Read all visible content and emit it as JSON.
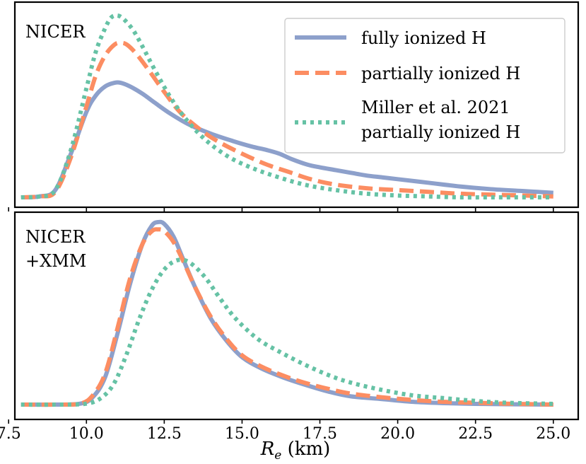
{
  "chart_data": [
    {
      "type": "line",
      "panel_label": [
        "NICER"
      ],
      "xlabel_main": "R",
      "xlabel_sub": "e",
      "xlabel_unit": " (km)",
      "xlim": [
        7.7,
        25.8
      ],
      "ylim": [
        0,
        1.05
      ],
      "y_ticks_shown": false,
      "legend": {
        "placement": "top-right",
        "entries": [
          {
            "series": 0,
            "lines": [
              "fully ionized H"
            ]
          },
          {
            "series": 1,
            "lines": [
              "partially ionized H"
            ]
          },
          {
            "series": 2,
            "lines": [
              "Miller et al. 2021",
              "partially ionized H"
            ]
          }
        ]
      },
      "series": [
        {
          "name": "fully ionized H",
          "color": "#8da0cb",
          "style": "solid",
          "x": [
            7.9,
            8.5,
            9.0,
            9.5,
            10.0,
            10.3,
            10.6,
            10.9,
            11.1,
            11.4,
            11.8,
            12.2,
            12.7,
            13.3,
            14.0,
            14.7,
            15.3,
            15.8,
            16.2,
            16.6,
            17.1,
            17.5,
            18.0,
            18.5,
            19.0,
            19.5,
            20.0,
            21.0,
            22.0,
            23.0,
            24.0,
            25.0
          ],
          "values": [
            0.0,
            0.005,
            0.04,
            0.24,
            0.47,
            0.56,
            0.61,
            0.63,
            0.63,
            0.61,
            0.57,
            0.52,
            0.46,
            0.4,
            0.35,
            0.31,
            0.28,
            0.26,
            0.24,
            0.21,
            0.18,
            0.165,
            0.15,
            0.135,
            0.12,
            0.11,
            0.1,
            0.08,
            0.06,
            0.045,
            0.035,
            0.025
          ]
        },
        {
          "name": "partially ionized H",
          "color": "#fc8d62",
          "style": "dashed",
          "x": [
            7.9,
            8.5,
            9.0,
            9.5,
            10.0,
            10.3,
            10.6,
            10.9,
            11.1,
            11.3,
            11.6,
            12.0,
            12.5,
            13.0,
            13.6,
            14.2,
            15.0,
            15.8,
            16.5,
            17.2,
            18.0,
            19.0,
            20.0,
            21.0,
            22.0,
            23.0,
            24.0,
            25.0
          ],
          "values": [
            0.0,
            0.005,
            0.03,
            0.22,
            0.5,
            0.67,
            0.78,
            0.84,
            0.85,
            0.84,
            0.79,
            0.7,
            0.58,
            0.47,
            0.38,
            0.31,
            0.24,
            0.18,
            0.14,
            0.1,
            0.07,
            0.05,
            0.04,
            0.03,
            0.02,
            0.015,
            0.01,
            0.005
          ]
        },
        {
          "name": "Miller et al. 2021 partially ionized H",
          "color": "#66c2a5",
          "style": "dotted",
          "x": [
            7.9,
            8.5,
            9.0,
            9.5,
            10.0,
            10.3,
            10.6,
            10.8,
            11.0,
            11.2,
            11.5,
            11.8,
            12.2,
            12.7,
            13.2,
            13.8,
            14.5,
            15.2,
            16.0,
            17.0,
            18.0,
            19.0,
            20.0,
            21.0,
            22.0,
            23.0,
            24.0,
            25.0
          ],
          "values": [
            0.0,
            0.005,
            0.04,
            0.26,
            0.6,
            0.8,
            0.93,
            0.99,
            1.0,
            0.98,
            0.92,
            0.83,
            0.7,
            0.55,
            0.43,
            0.32,
            0.23,
            0.17,
            0.12,
            0.07,
            0.04,
            0.02,
            0.01,
            0.005,
            0.0,
            0.0,
            0.0,
            0.0
          ]
        }
      ]
    },
    {
      "type": "line",
      "panel_label": [
        "NICER",
        "+XMM"
      ],
      "xlim": [
        7.7,
        25.8
      ],
      "ylim": [
        0,
        1.05
      ],
      "y_ticks_shown": false,
      "x_ticks": [
        7.5,
        10.0,
        12.5,
        15.0,
        17.5,
        20.0,
        22.5,
        25.0
      ],
      "x_tick_labels": [
        "7.5",
        "10.0",
        "12.5",
        "15.0",
        "17.5",
        "20.0",
        "22.5",
        "25.0"
      ],
      "series": [
        {
          "name": "fully ionized H",
          "color": "#8da0cb",
          "style": "solid",
          "x": [
            7.9,
            9.0,
            9.8,
            10.2,
            10.6,
            11.0,
            11.4,
            11.8,
            12.1,
            12.3,
            12.5,
            12.8,
            13.1,
            13.5,
            14.0,
            14.5,
            15.0,
            15.6,
            16.3,
            17.0,
            17.8,
            18.5,
            19.5,
            20.5,
            21.5,
            22.5,
            23.5,
            25.0
          ],
          "values": [
            0.0,
            0.0,
            0.005,
            0.04,
            0.15,
            0.39,
            0.66,
            0.88,
            0.98,
            1.0,
            0.99,
            0.92,
            0.8,
            0.64,
            0.47,
            0.35,
            0.26,
            0.2,
            0.15,
            0.11,
            0.07,
            0.045,
            0.03,
            0.015,
            0.008,
            0.004,
            0.002,
            0.0
          ]
        },
        {
          "name": "partially ionized H",
          "color": "#fc8d62",
          "style": "dashed",
          "x": [
            7.9,
            9.0,
            9.8,
            10.2,
            10.6,
            11.0,
            11.4,
            11.8,
            12.1,
            12.3,
            12.5,
            12.8,
            13.1,
            13.5,
            14.0,
            14.5,
            15.0,
            15.6,
            16.3,
            17.0,
            17.8,
            18.5,
            19.5,
            20.5,
            21.5,
            22.5,
            23.5,
            25.0
          ],
          "values": [
            0.0,
            0.0,
            0.005,
            0.05,
            0.17,
            0.42,
            0.69,
            0.88,
            0.95,
            0.96,
            0.95,
            0.89,
            0.79,
            0.64,
            0.48,
            0.36,
            0.27,
            0.21,
            0.16,
            0.12,
            0.085,
            0.06,
            0.04,
            0.025,
            0.015,
            0.01,
            0.005,
            0.0
          ]
        },
        {
          "name": "Miller et al. 2021 partially ionized H",
          "color": "#66c2a5",
          "style": "dotted",
          "x": [
            7.9,
            9.0,
            10.0,
            10.5,
            10.9,
            11.3,
            11.7,
            12.1,
            12.5,
            12.9,
            13.3,
            13.8,
            14.3,
            14.8,
            15.5,
            16.2,
            17.0,
            17.8,
            18.5,
            19.5,
            20.5,
            21.5,
            22.5,
            23.5,
            25.0
          ],
          "values": [
            0.0,
            0.0,
            0.005,
            0.04,
            0.12,
            0.28,
            0.47,
            0.63,
            0.74,
            0.79,
            0.78,
            0.7,
            0.58,
            0.47,
            0.36,
            0.29,
            0.22,
            0.16,
            0.12,
            0.08,
            0.05,
            0.035,
            0.02,
            0.01,
            0.004
          ]
        }
      ]
    }
  ]
}
